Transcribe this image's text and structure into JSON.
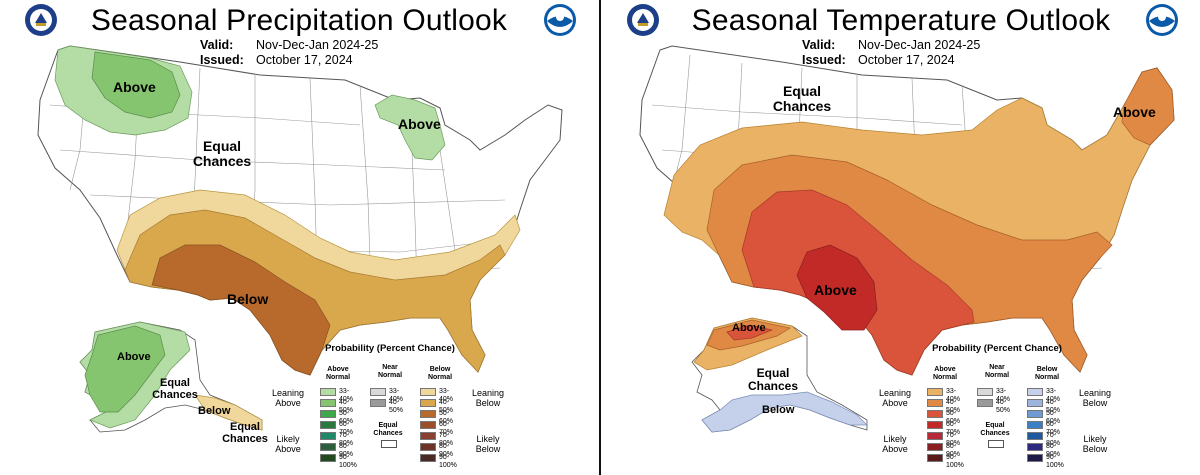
{
  "colors": {
    "land": "#ffffff",
    "border": "#8a8a8a",
    "wet_33_40": "#b4dca5",
    "wet_40_50": "#86c56f",
    "dry_33_40": "#f0d79b",
    "dry_40_50": "#d9a84d",
    "dry_50_60": "#b86a2d",
    "warm_33_40": "#e9b264",
    "warm_40_50": "#e08945",
    "warm_50_60": "#d9543a",
    "warm_60_70": "#c22a27",
    "cold_33_40": "#c5d1ea"
  },
  "left": {
    "title": "Seasonal Precipitation Outlook",
    "valid_label": "Valid:",
    "valid_value": "Nov-Dec-Jan 2024-25",
    "issued_label": "Issued:",
    "issued_value": "October 17, 2024",
    "labels": {
      "above_nw": "Above",
      "above_mi": "Above",
      "equal_chances": "Equal Chances",
      "below_south": "Below",
      "ak_above": "Above",
      "ak_equal": "Equal Chances",
      "ak_below": "Below",
      "ak_equal_2": "Equal Chances"
    },
    "legend": {
      "title": "Probability (Percent Chance)",
      "above_head": "Above Normal",
      "near_head": "Near Normal",
      "below_head": "Below Normal",
      "leaning_above": "Leaning Above",
      "leaning_below": "Leaning Below",
      "likely_above": "Likely Above",
      "likely_below": "Likely Below",
      "equal_chances": "Equal Chances",
      "above_items": [
        {
          "label": "33-40%",
          "color": "#b4dca5"
        },
        {
          "label": "40-50%",
          "color": "#86c56f"
        },
        {
          "label": "50-60%",
          "color": "#3fa84a"
        },
        {
          "label": "60-70%",
          "color": "#2a7a3e"
        },
        {
          "label": "70-80%",
          "color": "#1f8a6a"
        },
        {
          "label": "80-90%",
          "color": "#2d5e3d"
        },
        {
          "label": "90-100%",
          "color": "#234a1f"
        }
      ],
      "near_items": [
        {
          "label": "33-40%",
          "color": "#d9d9d9"
        },
        {
          "label": "40-50%",
          "color": "#9a9a9a"
        }
      ],
      "below_items": [
        {
          "label": "33-40%",
          "color": "#f0d79b"
        },
        {
          "label": "40-50%",
          "color": "#d9a84d"
        },
        {
          "label": "50-60%",
          "color": "#b86a2d"
        },
        {
          "label": "60-70%",
          "color": "#9a4f2a"
        },
        {
          "label": "70-80%",
          "color": "#8a4030"
        },
        {
          "label": "80-90%",
          "color": "#6e3328"
        },
        {
          "label": "90-100%",
          "color": "#4a2a26"
        }
      ]
    }
  },
  "right": {
    "title": "Seasonal Temperature Outlook",
    "valid_label": "Valid:",
    "valid_value": "Nov-Dec-Jan 2024-25",
    "issued_label": "Issued:",
    "issued_value": "October 17, 2024",
    "labels": {
      "equal_chances": "Equal Chances",
      "above_ne": "Above",
      "above_sw": "Above",
      "ak_above": "Above",
      "ak_equal": "Equal Chances",
      "ak_below": "Below"
    },
    "legend": {
      "title": "Probability (Percent Chance)",
      "above_head": "Above Normal",
      "near_head": "Near Normal",
      "below_head": "Below Normal",
      "leaning_above": "Leaning Above",
      "leaning_below": "Leaning Below",
      "likely_above": "Likely Above",
      "likely_below": "Likely Below",
      "equal_chances": "Equal Chances",
      "above_items": [
        {
          "label": "33-40%",
          "color": "#e9b264"
        },
        {
          "label": "40-50%",
          "color": "#e08945"
        },
        {
          "label": "50-60%",
          "color": "#d9543a"
        },
        {
          "label": "60-70%",
          "color": "#c22a27"
        },
        {
          "label": "70-80%",
          "color": "#b82a3a"
        },
        {
          "label": "80-90%",
          "color": "#8a1f22"
        },
        {
          "label": "90-100%",
          "color": "#5a1a1a"
        }
      ],
      "near_items": [
        {
          "label": "33-40%",
          "color": "#d9d9d9"
        },
        {
          "label": "40-50%",
          "color": "#9a9a9a"
        }
      ],
      "below_items": [
        {
          "label": "33-40%",
          "color": "#c5d1ea"
        },
        {
          "label": "40-50%",
          "color": "#9db5dd"
        },
        {
          "label": "50-60%",
          "color": "#6f9ad3"
        },
        {
          "label": "60-70%",
          "color": "#3d7fc5"
        },
        {
          "label": "70-80%",
          "color": "#1f5aa0"
        },
        {
          "label": "80-90%",
          "color": "#2b2a80"
        },
        {
          "label": "90-100%",
          "color": "#1e1a4a"
        }
      ]
    }
  }
}
